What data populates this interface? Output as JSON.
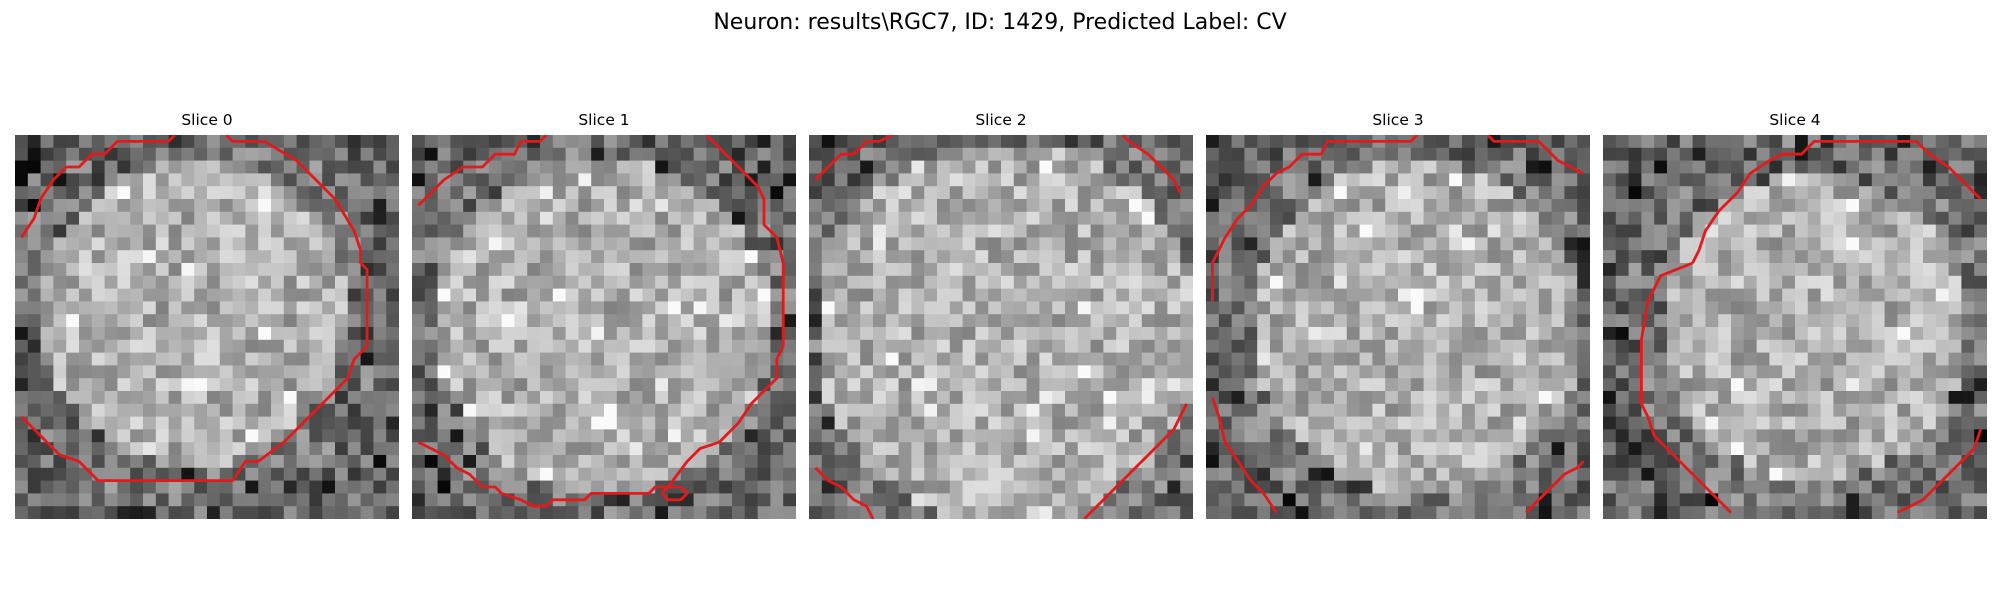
{
  "figure": {
    "title": "Neuron: results\\RGC7, ID: 1429, Predicted Label: CV",
    "contour_color": "#e31a1c"
  },
  "slices": [
    {
      "title": "Slice 0"
    },
    {
      "title": "Slice 1"
    },
    {
      "title": "Slice 2"
    },
    {
      "title": "Slice 3"
    },
    {
      "title": "Slice 4"
    }
  ]
}
